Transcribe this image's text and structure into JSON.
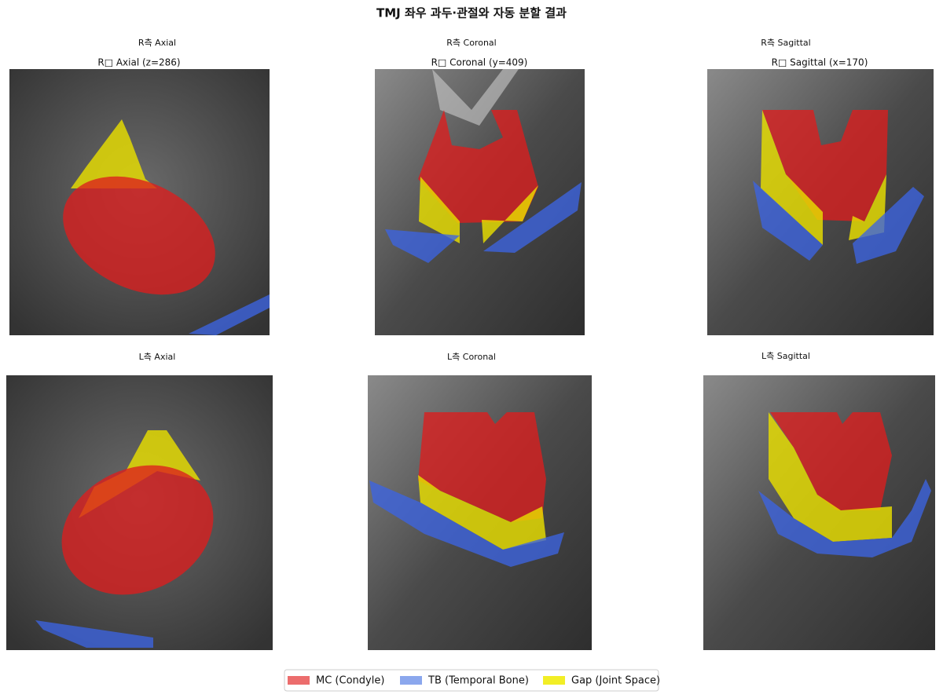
{
  "title": "TMJ 좌우 과두·관절와 자동 분할 결과",
  "panels": [
    {
      "title": "R측 Axial",
      "subtitle": "R□ Axial (z=286)"
    },
    {
      "title": "R측 Coronal",
      "subtitle": "R□ Coronal (y=409)"
    },
    {
      "title": "R측 Sagittal",
      "subtitle": "R□ Sagittal (x=170)"
    },
    {
      "title": "L측 Axial"
    },
    {
      "title": "L측 Coronal"
    },
    {
      "title": "L측 Sagittal"
    }
  ],
  "legend": [
    "MC (Condyle)",
    "TB (Temporal Bone)",
    "Gap (Joint Space)"
  ]
}
